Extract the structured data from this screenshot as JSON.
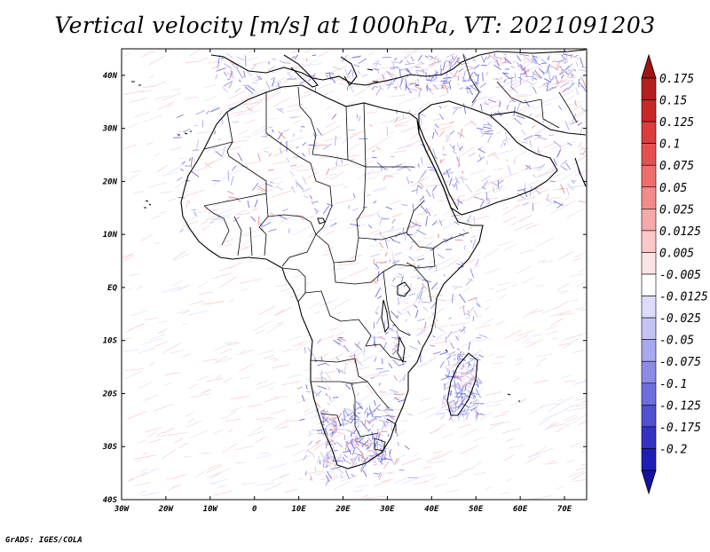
{
  "title": "Vertical velocity [m/s] at 1000hPa, VT: 2021091203",
  "footer": "GrADS: IGES/COLA",
  "map": {
    "lon_range": [
      -30,
      75
    ],
    "lat_range": [
      -40,
      45
    ],
    "lat_ticks": [
      {
        "value": 40,
        "label": "40N"
      },
      {
        "value": 30,
        "label": "30N"
      },
      {
        "value": 20,
        "label": "20N"
      },
      {
        "value": 10,
        "label": "10N"
      },
      {
        "value": 0,
        "label": "EQ"
      },
      {
        "value": -10,
        "label": "10S"
      },
      {
        "value": -20,
        "label": "20S"
      },
      {
        "value": -30,
        "label": "30S"
      },
      {
        "value": -40,
        "label": "40S"
      }
    ],
    "lon_ticks": [
      {
        "value": -30,
        "label": "30W"
      },
      {
        "value": -20,
        "label": "20W"
      },
      {
        "value": -10,
        "label": "10W"
      },
      {
        "value": 0,
        "label": "0"
      },
      {
        "value": 10,
        "label": "10E"
      },
      {
        "value": 20,
        "label": "20E"
      },
      {
        "value": 30,
        "label": "30E"
      },
      {
        "value": 40,
        "label": "40E"
      },
      {
        "value": 50,
        "label": "50E"
      },
      {
        "value": 60,
        "label": "60E"
      },
      {
        "value": 70,
        "label": "70E"
      }
    ]
  },
  "colorbar": {
    "levels": [
      {
        "label": "0.175",
        "color": "#b41e1e"
      },
      {
        "label": "0.15",
        "color": "#c82828"
      },
      {
        "label": "0.125",
        "color": "#dc3c3c"
      },
      {
        "label": "0.1",
        "color": "#e65050"
      },
      {
        "label": "0.075",
        "color": "#ee6e6e"
      },
      {
        "label": "0.05",
        "color": "#f28c8c"
      },
      {
        "label": "0.025",
        "color": "#f6aaaa"
      },
      {
        "label": "0.0125",
        "color": "#fac8c8"
      },
      {
        "label": "0.005",
        "color": "#fde4e4"
      },
      {
        "label": "-0.005",
        "color": "#ffffff"
      },
      {
        "label": "-0.0125",
        "color": "#dcdcfa"
      },
      {
        "label": "-0.025",
        "color": "#c4c4f4"
      },
      {
        "label": "-0.05",
        "color": "#a8a8ee"
      },
      {
        "label": "-0.075",
        "color": "#8c8ce6"
      },
      {
        "label": "-0.1",
        "color": "#6e6ede"
      },
      {
        "label": "-0.125",
        "color": "#5050d2"
      },
      {
        "label": "-0.175",
        "color": "#3232c4"
      },
      {
        "label": "-0.2",
        "color": "#1e1eb4"
      }
    ],
    "top_arrow_color": "#a01414",
    "bottom_arrow_color": "#1414a0"
  }
}
